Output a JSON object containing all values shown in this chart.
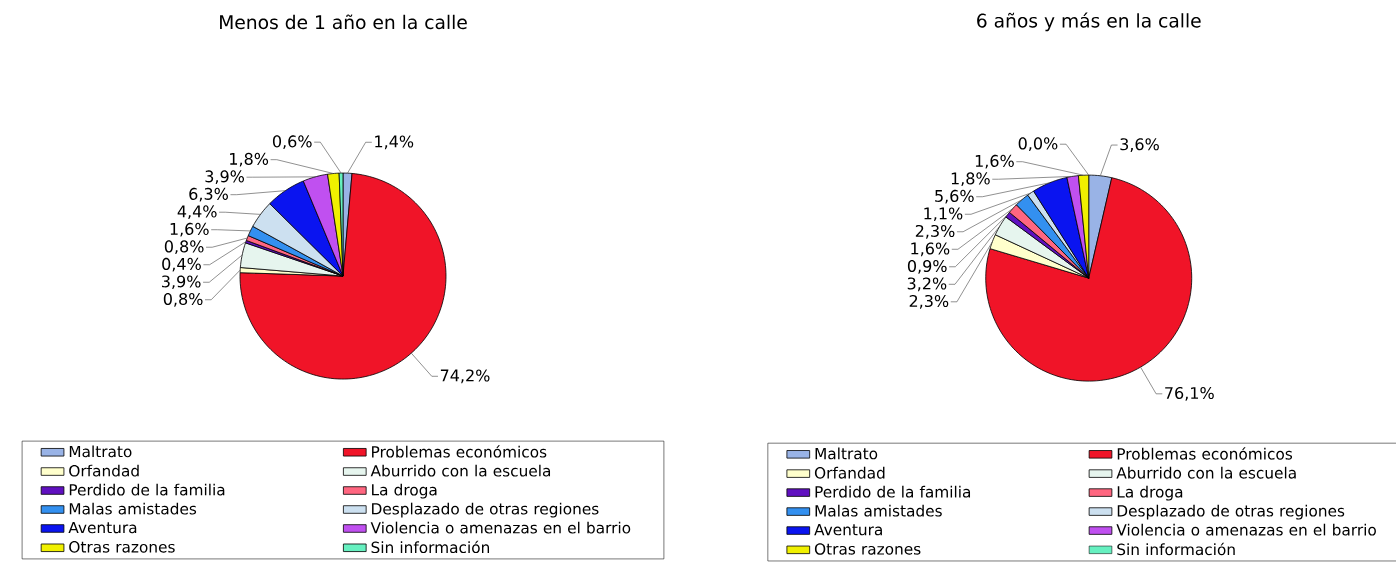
{
  "chart_data": [
    {
      "type": "pie",
      "title": "Menos de 1 año en la calle",
      "categories": [
        "Maltrato",
        "Problemas económicos",
        "Orfandad",
        "Aburrido con la escuela",
        "Perdido de la familia",
        "La droga",
        "Malas amistades",
        "Desplazado de otras regiones",
        "Aventura",
        "Violencia o amenazas en el barrio",
        "Otras razones",
        "Sin información"
      ],
      "values": [
        1.4,
        74.2,
        0.8,
        3.9,
        0.4,
        0.8,
        1.6,
        4.4,
        6.3,
        3.9,
        1.8,
        0.6
      ],
      "value_labels": [
        "1,4%",
        "74,2%",
        "0,8%",
        "3,9%",
        "0,4%",
        "0,8%",
        "1,6%",
        "4,4%",
        "6,3%",
        "3,9%",
        "1,8%",
        "0,6%"
      ],
      "colors": [
        "#99b3e6",
        "#f01428",
        "#ffffcc",
        "#e6f5ee",
        "#6010c0",
        "#ff6680",
        "#3390f0",
        "#cce0f0",
        "#0a14f0",
        "#c050f0",
        "#f0f000",
        "#66f0c0"
      ],
      "legend": "bottom"
    },
    {
      "type": "pie",
      "title": "6 años y más en la calle",
      "categories": [
        "Maltrato",
        "Problemas económicos",
        "Orfandad",
        "Aburrido con la escuela",
        "Perdido de la familia",
        "La droga",
        "Malas amistades",
        "Desplazado de otras regiones",
        "Aventura",
        "Violencia o amenazas en el barrio",
        "Otras razones",
        "Sin información"
      ],
      "values": [
        3.6,
        76.1,
        2.3,
        3.2,
        0.9,
        1.6,
        2.3,
        1.1,
        5.6,
        1.8,
        1.6,
        0.0
      ],
      "value_labels": [
        "3,6%",
        "76,1%",
        "2,3%",
        "3,2%",
        "0,9%",
        "1,6%",
        "2,3%",
        "1,1%",
        "5,6%",
        "1,8%",
        "1,6%",
        "0,0%"
      ],
      "colors": [
        "#99b3e6",
        "#f01428",
        "#ffffcc",
        "#e6f5ee",
        "#6010c0",
        "#ff6680",
        "#3390f0",
        "#cce0f0",
        "#0a14f0",
        "#c050f0",
        "#f0f000",
        "#66f0c0"
      ],
      "legend": "bottom"
    }
  ]
}
